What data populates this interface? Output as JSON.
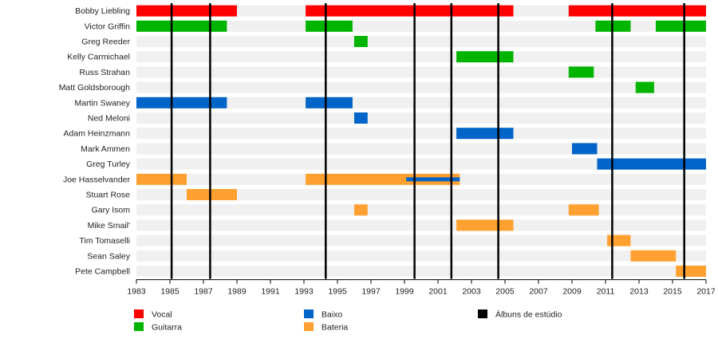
{
  "chart_data": {
    "type": "timeline",
    "x_range": [
      1983,
      2017
    ],
    "x_ticks": [
      "1983",
      "1985",
      "1987",
      "1989",
      "1991",
      "1993",
      "1995",
      "1997",
      "1999",
      "2001",
      "2003",
      "2005",
      "2007",
      "2009",
      "2011",
      "2013",
      "2015",
      "2017"
    ],
    "roles": {
      "vocal": {
        "label": "Vocal",
        "color": "#ff0000"
      },
      "guitarra": {
        "label": "Guitarra",
        "color": "#00b400"
      },
      "baixo": {
        "label": "Baixo",
        "color": "#0064c8"
      },
      "bateria": {
        "label": "Bateria",
        "color": "#ffa030"
      },
      "albuns": {
        "label": "Álbuns de estúdio",
        "color": "#000000"
      }
    },
    "albums": [
      1985.1,
      1987.4,
      1994.3,
      1999.6,
      2001.8,
      2004.6,
      2011.4,
      2015.7
    ],
    "members": [
      {
        "name": "Bobby Liebling",
        "bars": [
          {
            "role": "vocal",
            "start": 1983,
            "end": 1989
          },
          {
            "role": "vocal",
            "start": 1993.1,
            "end": 2005.5
          },
          {
            "role": "vocal",
            "start": 2008.8,
            "end": 2017
          }
        ]
      },
      {
        "name": "Victor Griffin",
        "bars": [
          {
            "role": "guitarra",
            "start": 1983,
            "end": 1988.4
          },
          {
            "role": "guitarra",
            "start": 1993.1,
            "end": 1995.9
          },
          {
            "role": "guitarra",
            "start": 2010.4,
            "end": 2012.5
          },
          {
            "role": "guitarra",
            "start": 2014,
            "end": 2017
          }
        ]
      },
      {
        "name": "Greg Reeder",
        "bars": [
          {
            "role": "guitarra",
            "start": 1996,
            "end": 1996.8
          }
        ]
      },
      {
        "name": "Kelly Carmichael",
        "bars": [
          {
            "role": "guitarra",
            "start": 2002.1,
            "end": 2005.5
          }
        ]
      },
      {
        "name": "Russ Strahan",
        "bars": [
          {
            "role": "guitarra",
            "start": 2008.8,
            "end": 2010.3
          }
        ]
      },
      {
        "name": "Matt Goldsborough",
        "bars": [
          {
            "role": "guitarra",
            "start": 2012.8,
            "end": 2013.9
          }
        ]
      },
      {
        "name": "Martin Swaney",
        "bars": [
          {
            "role": "baixo",
            "start": 1983,
            "end": 1988.4
          },
          {
            "role": "baixo",
            "start": 1993.1,
            "end": 1995.9
          }
        ]
      },
      {
        "name": "Ned Meloni",
        "bars": [
          {
            "role": "baixo",
            "start": 1996,
            "end": 1996.8
          }
        ]
      },
      {
        "name": "Adam Heinzmann",
        "bars": [
          {
            "role": "baixo",
            "start": 2002.1,
            "end": 2005.5
          }
        ]
      },
      {
        "name": "Mark Ammen",
        "bars": [
          {
            "role": "baixo",
            "start": 2009,
            "end": 2010.5
          }
        ]
      },
      {
        "name": "Greg Turley",
        "bars": [
          {
            "role": "baixo",
            "start": 2010.5,
            "end": 2017
          }
        ]
      },
      {
        "name": "Joe Hasselvander",
        "bars": [
          {
            "role": "bateria",
            "start": 1983,
            "end": 1986
          },
          {
            "role": "bateria",
            "start": 1993.1,
            "end": 2002.3
          },
          {
            "role": "baixo",
            "start": 1999.1,
            "end": 2002.3,
            "thin": true
          }
        ]
      },
      {
        "name": "Stuart Rose",
        "bars": [
          {
            "role": "bateria",
            "start": 1986,
            "end": 1989
          }
        ]
      },
      {
        "name": "Gary Isom",
        "bars": [
          {
            "role": "bateria",
            "start": 1996,
            "end": 1996.8
          },
          {
            "role": "bateria",
            "start": 2008.8,
            "end": 2010.6
          }
        ]
      },
      {
        "name": "Mike Smail'",
        "bars": [
          {
            "role": "bateria",
            "start": 2002.1,
            "end": 2005.5
          }
        ]
      },
      {
        "name": "Tim Tomaselli",
        "bars": [
          {
            "role": "bateria",
            "start": 2011.1,
            "end": 2012.5
          }
        ]
      },
      {
        "name": "Sean Saley",
        "bars": [
          {
            "role": "bateria",
            "start": 2012.5,
            "end": 2015.2
          }
        ]
      },
      {
        "name": "Pete Campbell",
        "bars": [
          {
            "role": "bateria",
            "start": 2015.2,
            "end": 2017
          }
        ]
      }
    ],
    "legend": [
      "vocal",
      "guitarra",
      "baixo",
      "bateria",
      "albuns"
    ]
  }
}
